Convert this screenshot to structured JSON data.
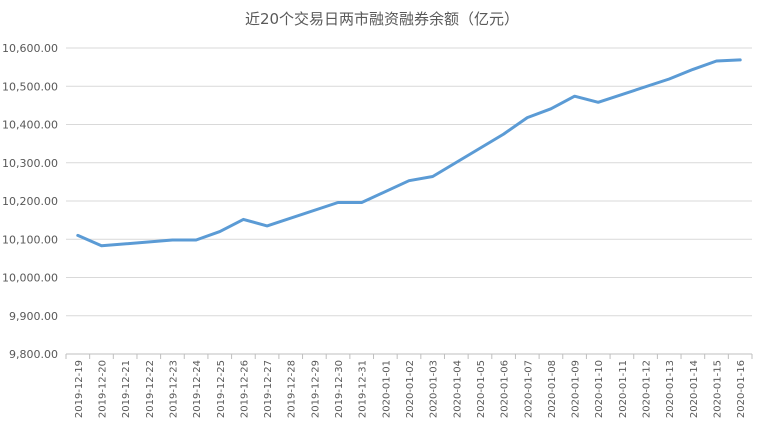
{
  "chart_data": {
    "type": "line",
    "title": "近20个交易日两市融资融券余额（亿元）",
    "xlabel": "",
    "ylabel": "",
    "ylim": [
      9800,
      10600
    ],
    "yticks": [
      "9,800.00",
      "9,900.00",
      "10,000.00",
      "10,100.00",
      "10,200.00",
      "10,300.00",
      "10,400.00",
      "10,500.00",
      "10,600.00"
    ],
    "grid": true,
    "legend": "none",
    "line_color": "#5b9bd5",
    "categories": [
      "2019-12-19",
      "2019-12-20",
      "2019-12-21",
      "2019-12-22",
      "2019-12-23",
      "2019-12-24",
      "2019-12-25",
      "2019-12-26",
      "2019-12-27",
      "2019-12-28",
      "2019-12-29",
      "2019-12-30",
      "2019-12-31",
      "2020-01-01",
      "2020-01-02",
      "2020-01-03",
      "2020-01-04",
      "2020-01-05",
      "2020-01-06",
      "2020-01-07",
      "2020-01-08",
      "2020-01-09",
      "2020-01-10",
      "2020-01-11",
      "2020-01-12",
      "2020-01-13",
      "2020-01-14",
      "2020-01-15",
      "2020-01-16"
    ],
    "series": [
      {
        "x": [
          "2019-12-19",
          "2019-12-20",
          "2019-12-23",
          "2019-12-24",
          "2019-12-25",
          "2019-12-26",
          "2019-12-27",
          "2019-12-30",
          "2019-12-31",
          "2020-01-02",
          "2020-01-03",
          "2020-01-06",
          "2020-01-07",
          "2020-01-08",
          "2020-01-09",
          "2020-01-10",
          "2020-01-13",
          "2020-01-14",
          "2020-01-15",
          "2020-01-16"
        ],
        "values": [
          10110,
          10083,
          10098,
          10098,
          10120,
          10152,
          10135,
          10196,
          10196,
          10253,
          10264,
          10375,
          10418,
          10441,
          10474,
          10458,
          10519,
          10544,
          10566,
          10569
        ]
      }
    ]
  }
}
